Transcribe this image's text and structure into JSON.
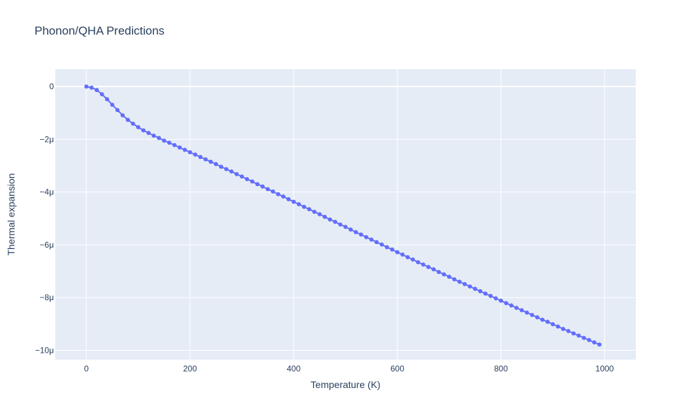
{
  "chart_data": {
    "type": "scatter",
    "mode": "lines+markers",
    "title": "Phonon/QHA Predictions",
    "xlabel": "Temperature (K)",
    "ylabel": "Thermal expansion",
    "xlim": [
      -60,
      1060
    ],
    "ylim": [
      -1.0355e-05,
      6.6e-07
    ],
    "x_ticks": [
      0,
      200,
      400,
      600,
      800,
      1000
    ],
    "x_tick_labels": [
      "0",
      "200",
      "400",
      "600",
      "800",
      "1000"
    ],
    "y_ticks": [
      0,
      -2e-06,
      -4e-06,
      -6e-06,
      -8e-06,
      -1e-05
    ],
    "y_tick_labels": [
      "0",
      "−2μ",
      "−4μ",
      "−6μ",
      "−8μ",
      "−10μ"
    ],
    "grid": true,
    "colors": {
      "series": "#636efa",
      "plot_bg": "#e5ecf6",
      "grid": "#ffffff",
      "text": "#2a3f5f"
    },
    "x": [
      0,
      10,
      20,
      30,
      40,
      50,
      60,
      70,
      80,
      90,
      100,
      110,
      120,
      130,
      140,
      150,
      160,
      170,
      180,
      190,
      200,
      210,
      220,
      230,
      240,
      250,
      260,
      270,
      280,
      290,
      300,
      310,
      320,
      330,
      340,
      350,
      360,
      370,
      380,
      390,
      400,
      410,
      420,
      430,
      440,
      450,
      460,
      470,
      480,
      490,
      500,
      510,
      520,
      530,
      540,
      550,
      560,
      570,
      580,
      590,
      600,
      610,
      620,
      630,
      640,
      650,
      660,
      670,
      680,
      690,
      700,
      710,
      720,
      730,
      740,
      750,
      760,
      770,
      780,
      790,
      800,
      810,
      820,
      830,
      840,
      850,
      860,
      870,
      880,
      890,
      900,
      910,
      920,
      930,
      940,
      950,
      960,
      970,
      980,
      990
    ],
    "y": [
      0,
      -4e-08,
      -1.3e-07,
      -2.9e-07,
      -4.8e-07,
      -6.9e-07,
      -8.9e-07,
      -1.09e-06,
      -1.26e-06,
      -1.41e-06,
      -1.54e-06,
      -1.66e-06,
      -1.76e-06,
      -1.86e-06,
      -1.95e-06,
      -2.05e-06,
      -2.13e-06,
      -2.22e-06,
      -2.31e-06,
      -2.4e-06,
      -2.49e-06,
      -2.58e-06,
      -2.67e-06,
      -2.76e-06,
      -2.85e-06,
      -2.94e-06,
      -3.04e-06,
      -3.13e-06,
      -3.22e-06,
      -3.32e-06,
      -3.41e-06,
      -3.51e-06,
      -3.6e-06,
      -3.7e-06,
      -3.79e-06,
      -3.89e-06,
      -3.98e-06,
      -4.08e-06,
      -4.17e-06,
      -4.27e-06,
      -4.37e-06,
      -4.46e-06,
      -4.56e-06,
      -4.65e-06,
      -4.75e-06,
      -4.84e-06,
      -4.94e-06,
      -5.04e-06,
      -5.13e-06,
      -5.23e-06,
      -5.32e-06,
      -5.42e-06,
      -5.52e-06,
      -5.61e-06,
      -5.71e-06,
      -5.8e-06,
      -5.9e-06,
      -5.99e-06,
      -6.09e-06,
      -6.18e-06,
      -6.28e-06,
      -6.37e-06,
      -6.47e-06,
      -6.56e-06,
      -6.66e-06,
      -6.75e-06,
      -6.84e-06,
      -6.93e-06,
      -7.03e-06,
      -7.12e-06,
      -7.21e-06,
      -7.31e-06,
      -7.4e-06,
      -7.49e-06,
      -7.58e-06,
      -7.67e-06,
      -7.76e-06,
      -7.85e-06,
      -7.94e-06,
      -8.03e-06,
      -8.12e-06,
      -8.21e-06,
      -8.3e-06,
      -8.39e-06,
      -8.48e-06,
      -8.57e-06,
      -8.66e-06,
      -8.75e-06,
      -8.84e-06,
      -8.92e-06,
      -9.01e-06,
      -9.1e-06,
      -9.19e-06,
      -9.27e-06,
      -9.36e-06,
      -9.44e-06,
      -9.53e-06,
      -9.61e-06,
      -9.7e-06,
      -9.78e-06
    ]
  }
}
